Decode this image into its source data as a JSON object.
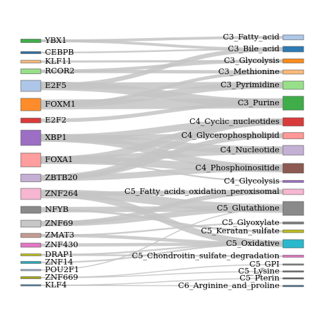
{
  "chart_data": {
    "type": "sankey",
    "sources": [
      {
        "label": "YBX1",
        "color": "#3fae49"
      },
      {
        "label": "CEBPB",
        "color": "#2e6fa3"
      },
      {
        "label": "KLF11",
        "color": "#f5b97e"
      },
      {
        "label": "RCOR2",
        "color": "#98df8a"
      },
      {
        "label": "E2F5",
        "color": "#aec7e8"
      },
      {
        "label": "FOXM1",
        "color": "#ff8c2a"
      },
      {
        "label": "E2F2",
        "color": "#d93b3b"
      },
      {
        "label": "XBP1",
        "color": "#9c6fc4"
      },
      {
        "label": "FOXA1",
        "color": "#ff9e9e"
      },
      {
        "label": "ZBTB20",
        "color": "#c5b0d5"
      },
      {
        "label": "ZNF264",
        "color": "#f7b6d2"
      },
      {
        "label": "NFYB",
        "color": "#8a8a8a"
      },
      {
        "label": "ZNF69",
        "color": "#c7c7c7"
      },
      {
        "label": "ZMAT3",
        "color": "#c49c94"
      },
      {
        "label": "ZNF430",
        "color": "#e377c2"
      },
      {
        "label": "DRAP1",
        "color": "#bdbd22"
      },
      {
        "label": "ZNF14",
        "color": "#2aa9b8"
      },
      {
        "label": "POU2F1",
        "color": "#9bb8d6"
      },
      {
        "label": "ZNF669",
        "color": "#a6a61c"
      },
      {
        "label": "KLF4",
        "color": "#4d7fa3"
      }
    ],
    "targets": [
      {
        "label": "C3_Fatty_acid",
        "color": "#aec7e8"
      },
      {
        "label": "C3_Bile_acid",
        "color": "#2e7ab3"
      },
      {
        "label": "C3_Glycolysis",
        "color": "#ff8c1a"
      },
      {
        "label": "C3_Methionine",
        "color": "#ffbb78"
      },
      {
        "label": "C3_Pyrimidine",
        "color": "#98df8a"
      },
      {
        "label": "C3_Purine",
        "color": "#3fae49"
      },
      {
        "label": "C4_Cyclic_nucleotides",
        "color": "#d93b3b"
      },
      {
        "label": "C4_Glycerophospholipid",
        "color": "#ff9896"
      },
      {
        "label": "C4_Nucleotide",
        "color": "#c5b0d5"
      },
      {
        "label": "C4_Phosphoinositide",
        "color": "#8c5a50"
      },
      {
        "label": "C4_Glycolysis",
        "color": "#9c6fc4"
      },
      {
        "label": "C5_Fatty_acids_oxidation_peroxisomal",
        "color": "#f7b6d2"
      },
      {
        "label": "C5_Glutathione",
        "color": "#8a8a8a"
      },
      {
        "label": "C5_Glyoxylate",
        "color": "#7f7f7f"
      },
      {
        "label": "C5_Keratan_sulfate",
        "color": "#bdbd22"
      },
      {
        "label": "C5_Oxidative",
        "color": "#2ab8cc"
      },
      {
        "label": "C5_Chondroitin_sulfate_degradation",
        "color": "#e377c2"
      },
      {
        "label": "C5_GPI",
        "color": "#888888"
      },
      {
        "label": "C5_Lysine",
        "color": "#777777"
      },
      {
        "label": "C5_Pterin",
        "color": "#666666"
      },
      {
        "label": "C6_Arginine_and_proline",
        "color": "#3a6f8f"
      }
    ],
    "links": [
      {
        "source": "YBX1",
        "target": "C3_Fatty_acid"
      },
      {
        "source": "YBX1",
        "target": "C3_Bile_acid"
      },
      {
        "source": "CEBPB",
        "target": "C3_Bile_acid"
      },
      {
        "source": "KLF11",
        "target": "C3_Glycolysis"
      },
      {
        "source": "RCOR2",
        "target": "C3_Methionine"
      },
      {
        "source": "RCOR2",
        "target": "C3_Glycolysis"
      },
      {
        "source": "E2F5",
        "target": "C3_Pyrimidine"
      },
      {
        "source": "E2F5",
        "target": "C3_Purine"
      },
      {
        "source": "E2F5",
        "target": "C3_Bile_acid"
      },
      {
        "source": "FOXM1",
        "target": "C3_Purine"
      },
      {
        "source": "FOXM1",
        "target": "C3_Pyrimidine"
      },
      {
        "source": "FOXM1",
        "target": "C3_Methionine"
      },
      {
        "source": "E2F2",
        "target": "C3_Purine"
      },
      {
        "source": "XBP1",
        "target": "C4_Cyclic_nucleotides"
      },
      {
        "source": "XBP1",
        "target": "C4_Glycerophospholipid"
      },
      {
        "source": "XBP1",
        "target": "C4_Nucleotide"
      },
      {
        "source": "XBP1",
        "target": "C4_Phosphoinositide"
      },
      {
        "source": "FOXA1",
        "target": "C4_Nucleotide"
      },
      {
        "source": "FOXA1",
        "target": "C4_Phosphoinositide"
      },
      {
        "source": "FOXA1",
        "target": "C4_Glycolysis"
      },
      {
        "source": "FOXA1",
        "target": "C4_Cyclic_nucleotides"
      },
      {
        "source": "ZBTB20",
        "target": "C4_Phosphoinositide"
      },
      {
        "source": "ZBTB20",
        "target": "C4_Glycerophospholipid"
      },
      {
        "source": "ZBTB20",
        "target": "C4_Cyclic_nucleotides"
      },
      {
        "source": "ZNF264",
        "target": "C5_Glutathione"
      },
      {
        "source": "ZNF264",
        "target": "C5_Oxidative"
      },
      {
        "source": "ZNF264",
        "target": "C5_Fatty_acids_oxidation_peroxisomal"
      },
      {
        "source": "NFYB",
        "target": "C5_Glutathione"
      },
      {
        "source": "NFYB",
        "target": "C5_Keratan_sulfate"
      },
      {
        "source": "ZNF69",
        "target": "C5_Glutathione"
      },
      {
        "source": "ZNF69",
        "target": "C5_Fatty_acids_oxidation_peroxisomal"
      },
      {
        "source": "ZMAT3",
        "target": "C5_Oxidative"
      },
      {
        "source": "ZMAT3",
        "target": "C5_Glyoxylate"
      },
      {
        "source": "ZNF430",
        "target": "C5_Oxidative"
      },
      {
        "source": "DRAP1",
        "target": "C5_Oxidative"
      },
      {
        "source": "DRAP1",
        "target": "C5_Chondroitin_sulfate_degradation"
      },
      {
        "source": "ZNF14",
        "target": "C5_Oxidative"
      },
      {
        "source": "POU2F1",
        "target": "C5_Glutathione"
      },
      {
        "source": "ZNF669",
        "target": "C5_GPI"
      },
      {
        "source": "ZNF669",
        "target": "C5_Lysine"
      },
      {
        "source": "KLF4",
        "target": "C5_Pterin"
      },
      {
        "source": "KLF4",
        "target": "C6_Arginine_and_proline"
      }
    ]
  }
}
